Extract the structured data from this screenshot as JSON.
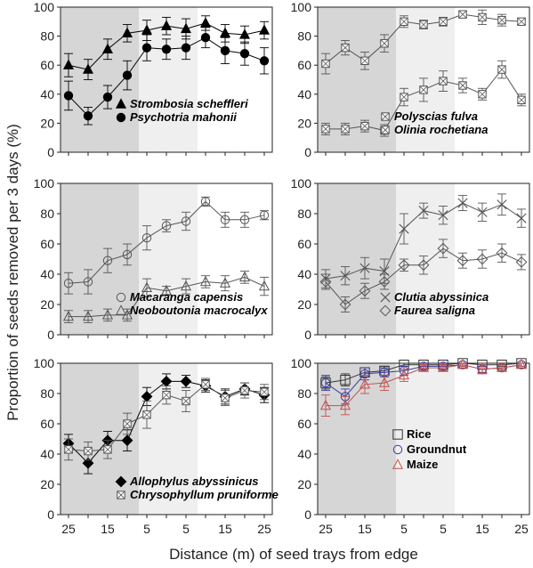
{
  "figure": {
    "ylabel": "Proportion of seeds removed per 3 days (%)",
    "xlabel": "Distance (m) of seed trays from edge",
    "x_tick_labels": [
      "25",
      "15",
      "5",
      "5",
      "15",
      "25"
    ],
    "y_tick_labels": [
      "0",
      "20",
      "40",
      "60",
      "80",
      "100"
    ],
    "shade_colors": {
      "dark": "#d6d6d6",
      "light": "#efefef"
    }
  },
  "chart_data": [
    {
      "type": "line",
      "panel": "top-left",
      "x": [
        25,
        20,
        15,
        10,
        5,
        0,
        -5,
        -10,
        -15,
        -20,
        -25
      ],
      "ylim": [
        0,
        100
      ],
      "legend_position": "bottom-right",
      "series": [
        {
          "name": "Strombosia scheffleri",
          "marker": "filled-triangle",
          "color": "#000000",
          "values": [
            60,
            57,
            71,
            82,
            84,
            87,
            85,
            89,
            82,
            81,
            84
          ],
          "errors": [
            8,
            7,
            7,
            6,
            7,
            6,
            7,
            5,
            6,
            6,
            6
          ]
        },
        {
          "name": "Psychotria mahonii",
          "marker": "filled-circle",
          "color": "#000000",
          "values": [
            39,
            25,
            38,
            53,
            72,
            71,
            72,
            79,
            70,
            68,
            63
          ],
          "errors": [
            10,
            6,
            8,
            10,
            9,
            7,
            8,
            7,
            9,
            8,
            9
          ]
        }
      ]
    },
    {
      "type": "line",
      "panel": "top-right",
      "x": [
        25,
        20,
        15,
        10,
        5,
        0,
        -5,
        -10,
        -15,
        -20,
        -25
      ],
      "ylim": [
        0,
        100
      ],
      "legend_position": "bottom-right",
      "series": [
        {
          "name": "Polyscias fulva",
          "marker": "crossed-square",
          "color": "#555555",
          "values": [
            61,
            72,
            63,
            75,
            90,
            88,
            90,
            95,
            93,
            91,
            90
          ],
          "errors": [
            7,
            5,
            6,
            6,
            4,
            3,
            3,
            2,
            5,
            4,
            2
          ]
        },
        {
          "name": "Olinia rochetiana",
          "marker": "hatched-square",
          "color": "#555555",
          "values": [
            16,
            16,
            18,
            15,
            38,
            43,
            49,
            46,
            40,
            57,
            36
          ],
          "errors": [
            4,
            4,
            4,
            4,
            6,
            8,
            7,
            5,
            4,
            6,
            4
          ]
        }
      ]
    },
    {
      "type": "line",
      "panel": "middle-left",
      "x": [
        25,
        20,
        15,
        10,
        5,
        0,
        -5,
        -10,
        -15,
        -20,
        -25
      ],
      "ylim": [
        0,
        100
      ],
      "legend_position": "bottom-right",
      "series": [
        {
          "name": "Macaranga capensis",
          "marker": "open-circle",
          "color": "#555555",
          "values": [
            34,
            35,
            49,
            53,
            64,
            72,
            75,
            88,
            76,
            76,
            79
          ],
          "errors": [
            7,
            8,
            8,
            7,
            8,
            4,
            6,
            3,
            5,
            5,
            3
          ]
        },
        {
          "name": "Neoboutonia macrocalyx",
          "marker": "open-triangle",
          "color": "#555555",
          "values": [
            12,
            12,
            13,
            13,
            31,
            29,
            32,
            35,
            34,
            38,
            32
          ],
          "errors": [
            4,
            4,
            4,
            4,
            6,
            3,
            5,
            4,
            5,
            4,
            6
          ]
        }
      ]
    },
    {
      "type": "line",
      "panel": "middle-right",
      "x": [
        25,
        20,
        15,
        10,
        5,
        0,
        -5,
        -10,
        -15,
        -20,
        -25
      ],
      "ylim": [
        0,
        100
      ],
      "legend_position": "bottom-right",
      "series": [
        {
          "name": "Clutia abyssinica",
          "marker": "cross",
          "color": "#555555",
          "values": [
            37,
            39,
            44,
            42,
            70,
            82,
            79,
            87,
            81,
            86,
            77
          ],
          "errors": [
            6,
            6,
            7,
            8,
            10,
            5,
            6,
            5,
            6,
            7,
            6
          ]
        },
        {
          "name": "Faurea saligna",
          "marker": "open-diamond",
          "color": "#555555",
          "values": [
            35,
            20,
            29,
            35,
            46,
            46,
            57,
            49,
            50,
            54,
            48
          ],
          "errors": [
            5,
            5,
            5,
            5,
            4,
            6,
            6,
            5,
            6,
            6,
            5
          ]
        }
      ]
    },
    {
      "type": "line",
      "panel": "bottom-left",
      "x": [
        25,
        20,
        15,
        10,
        5,
        0,
        -5,
        -10,
        -15,
        -20,
        -25
      ],
      "ylim": [
        0,
        100
      ],
      "legend_position": "bottom-right",
      "series": [
        {
          "name": "Allophylus abyssinicus",
          "marker": "filled-diamond",
          "color": "#000000",
          "values": [
            47,
            34,
            49,
            49,
            78,
            88,
            88,
            85,
            78,
            83,
            79
          ],
          "errors": [
            6,
            7,
            6,
            7,
            6,
            5,
            4,
            4,
            5,
            4,
            5
          ]
        },
        {
          "name": "Chrysophyllum pruniforme",
          "marker": "hatched-square",
          "color": "#555555",
          "values": [
            43,
            42,
            43,
            60,
            66,
            79,
            75,
            86,
            77,
            82,
            81
          ],
          "errors": [
            7,
            6,
            6,
            7,
            9,
            6,
            7,
            4,
            5,
            5,
            5
          ]
        }
      ]
    },
    {
      "type": "line",
      "panel": "bottom-right",
      "x": [
        25,
        20,
        15,
        10,
        5,
        0,
        -5,
        -10,
        -15,
        -20,
        -25
      ],
      "ylim": [
        0,
        100
      ],
      "legend_position": "bottom-right",
      "series": [
        {
          "name": "Rice",
          "marker": "open-square",
          "color": "#333333",
          "values": [
            87,
            89,
            94,
            95,
            99,
            99,
            99,
            100,
            99,
            99,
            100
          ],
          "errors": [
            4,
            4,
            3,
            3,
            1,
            1,
            1,
            0,
            1,
            1,
            0
          ]
        },
        {
          "name": "Groundnut",
          "marker": "open-circle",
          "color": "#3a3aa0",
          "values": [
            87,
            78,
            93,
            94,
            95,
            98,
            98,
            99,
            96,
            97,
            99
          ],
          "errors": [
            5,
            5,
            4,
            3,
            3,
            2,
            2,
            1,
            2,
            2,
            1
          ]
        },
        {
          "name": "Maize",
          "marker": "open-triangle",
          "color": "#c0504d",
          "values": [
            72,
            72,
            86,
            87,
            92,
            97,
            97,
            99,
            96,
            97,
            99
          ],
          "errors": [
            7,
            6,
            6,
            5,
            4,
            2,
            2,
            1,
            3,
            2,
            1
          ]
        }
      ]
    }
  ]
}
